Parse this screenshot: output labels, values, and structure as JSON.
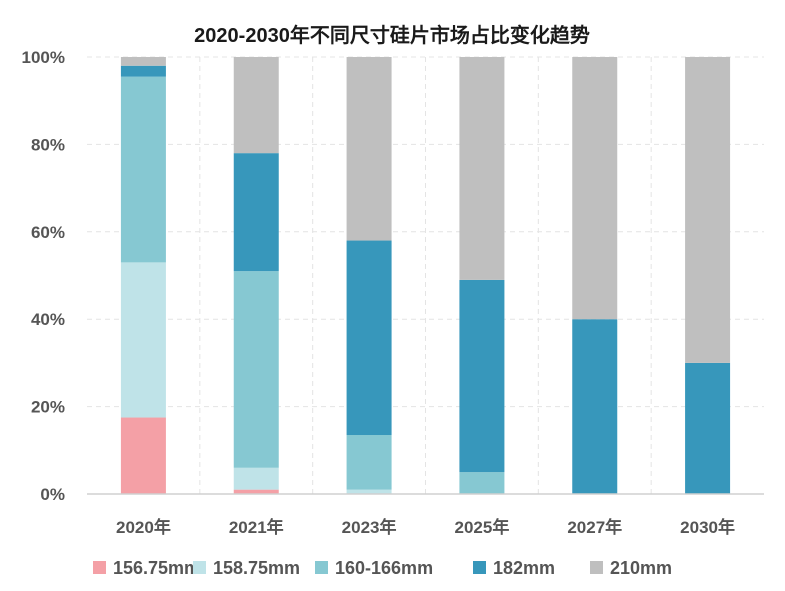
{
  "chart_data": {
    "type": "bar",
    "stacked": true,
    "title": "2020-2030年不同尺寸硅片市场占比变化趋势",
    "categories": [
      "2020年",
      "2021年",
      "2023年",
      "2025年",
      "2027年",
      "2030年"
    ],
    "series": [
      {
        "name": "156.75mm",
        "color": "#F4A0A6",
        "values": [
          17.5,
          1,
          0,
          0,
          0,
          0
        ]
      },
      {
        "name": "158.75mm",
        "color": "#BFE3E8",
        "values": [
          35.5,
          5,
          1,
          0,
          0,
          0
        ]
      },
      {
        "name": "160-166mm",
        "color": "#86C8D2",
        "values": [
          42.5,
          45,
          12.5,
          5,
          0,
          0
        ]
      },
      {
        "name": "182mm",
        "color": "#3797BB",
        "values": [
          2.5,
          27,
          44.5,
          44,
          40,
          30
        ]
      },
      {
        "name": "210mm",
        "color": "#BFBFBF",
        "values": [
          2,
          22,
          42,
          51,
          60,
          70
        ]
      }
    ],
    "yticks": [
      "0%",
      "20%",
      "40%",
      "60%",
      "80%",
      "100%"
    ],
    "ylim": [
      0,
      100
    ],
    "grid": true,
    "legend_position": "bottom"
  }
}
